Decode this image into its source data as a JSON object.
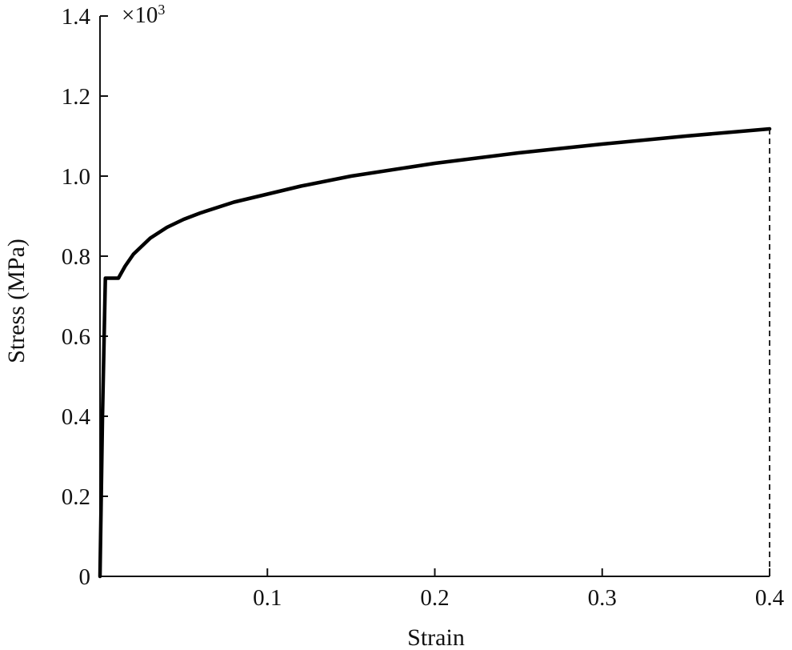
{
  "chart_data": {
    "type": "line",
    "xlabel": "Strain",
    "ylabel": "Stress (MPa)",
    "y_multiplier": {
      "base": "×10",
      "exponent": "3"
    },
    "xlim": [
      0,
      0.4
    ],
    "ylim": [
      0,
      1.4
    ],
    "x_ticks": [
      {
        "value": 0.1,
        "label": "0.1"
      },
      {
        "value": 0.2,
        "label": "0.2"
      },
      {
        "value": 0.3,
        "label": "0.3"
      },
      {
        "value": 0.4,
        "label": "0.4"
      }
    ],
    "y_ticks": [
      {
        "value": 0,
        "label": "0"
      },
      {
        "value": 0.2,
        "label": "0.2"
      },
      {
        "value": 0.4,
        "label": "0.4"
      },
      {
        "value": 0.6,
        "label": "0.6"
      },
      {
        "value": 0.8,
        "label": "0.8"
      },
      {
        "value": 1.0,
        "label": "1.0"
      },
      {
        "value": 1.2,
        "label": "1.2"
      },
      {
        "value": 1.4,
        "label": "1.4"
      }
    ],
    "grid": false,
    "legend": "none",
    "series": [
      {
        "points": [
          [
            0.0,
            0.0
          ],
          [
            0.0015,
            0.4
          ],
          [
            0.0032,
            0.745
          ],
          [
            0.011,
            0.745
          ],
          [
            0.015,
            0.775
          ],
          [
            0.02,
            0.805
          ],
          [
            0.03,
            0.845
          ],
          [
            0.04,
            0.872
          ],
          [
            0.05,
            0.892
          ],
          [
            0.06,
            0.908
          ],
          [
            0.08,
            0.935
          ],
          [
            0.1,
            0.955
          ],
          [
            0.12,
            0.975
          ],
          [
            0.15,
            1.0
          ],
          [
            0.2,
            1.032
          ],
          [
            0.25,
            1.058
          ],
          [
            0.3,
            1.08
          ],
          [
            0.35,
            1.1
          ],
          [
            0.4,
            1.118
          ]
        ],
        "color": "#000000"
      }
    ],
    "annotations": [
      {
        "type": "vertical-dashed-line",
        "x": 0.4,
        "from_y": 0,
        "to_y": 1.118
      }
    ]
  }
}
